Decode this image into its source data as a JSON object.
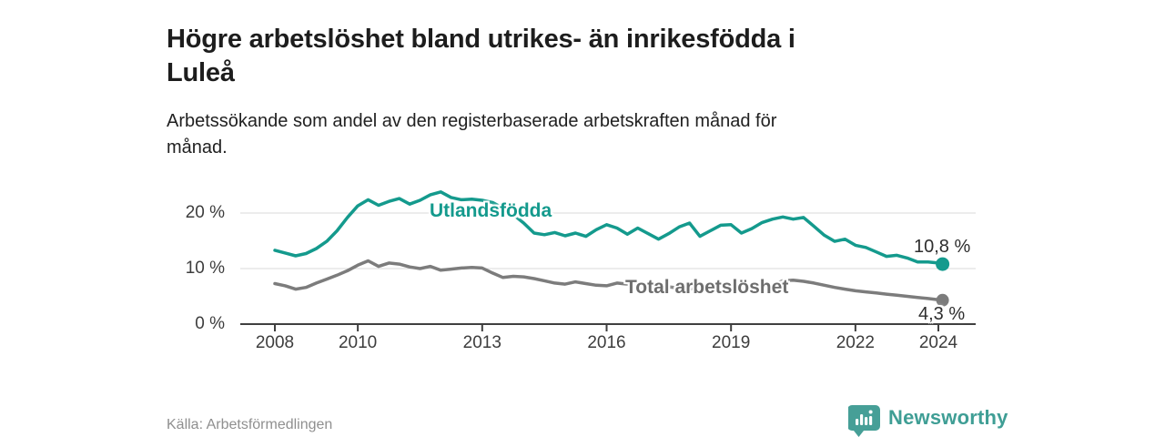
{
  "header": {
    "title": "Högre arbetslöshet bland utrikes- än inrikesfödda i Luleå",
    "title_lines": [
      "Högre arbetslöshet bland utrikes- än inrikesfödda i",
      "Luleå"
    ],
    "subtitle": "Arbetssökande som andel av den registerbaserade arbetskraften månad för månad.",
    "subtitle_lines": [
      "Arbetssökande som andel av den registerbaserade arbetskraften månad för",
      "månad."
    ]
  },
  "chart_data": {
    "type": "line",
    "title": "Högre arbetslöshet bland utrikes- än inrikesfödda i Luleå",
    "subtitle": "Arbetssökande som andel av den registerbaserade arbetskraften månad för månad.",
    "unit": "%",
    "grid": true,
    "legend_position": "inline-labels",
    "x_range": [
      2008,
      2024.17
    ],
    "y_range": [
      0,
      25.5
    ],
    "x_ticks": [
      {
        "year": 2008,
        "label": "2008"
      },
      {
        "year": 2010,
        "label": "2010"
      },
      {
        "year": 2013,
        "label": "2013"
      },
      {
        "year": 2016,
        "label": "2016"
      },
      {
        "year": 2019,
        "label": "2019"
      },
      {
        "year": 2022,
        "label": "2022"
      },
      {
        "year": 2024,
        "label": "2024"
      }
    ],
    "y_ticks": [
      {
        "value": 0,
        "label": "0 %"
      },
      {
        "value": 10,
        "label": "10 %"
      },
      {
        "value": 20,
        "label": "20 %"
      }
    ],
    "series": [
      {
        "name": "Utlandsfödda",
        "color": "#149a8d",
        "end_label": "10,8 %",
        "end_value": 10.8,
        "points": [
          [
            2008.0,
            13.3
          ],
          [
            2008.25,
            12.8
          ],
          [
            2008.5,
            12.3
          ],
          [
            2008.75,
            12.7
          ],
          [
            2009.0,
            13.6
          ],
          [
            2009.25,
            14.9
          ],
          [
            2009.5,
            16.8
          ],
          [
            2009.75,
            19.2
          ],
          [
            2010.0,
            21.3
          ],
          [
            2010.25,
            22.4
          ],
          [
            2010.5,
            21.4
          ],
          [
            2010.75,
            22.1
          ],
          [
            2011.0,
            22.6
          ],
          [
            2011.25,
            21.6
          ],
          [
            2011.5,
            22.3
          ],
          [
            2011.75,
            23.3
          ],
          [
            2012.0,
            23.8
          ],
          [
            2012.25,
            22.8
          ],
          [
            2012.5,
            22.4
          ],
          [
            2012.75,
            22.5
          ],
          [
            2013.0,
            22.3
          ],
          [
            2013.25,
            21.9
          ],
          [
            2013.5,
            20.9
          ],
          [
            2013.75,
            19.7
          ],
          [
            2014.0,
            18.2
          ],
          [
            2014.25,
            16.4
          ],
          [
            2014.5,
            16.1
          ],
          [
            2014.75,
            16.5
          ],
          [
            2015.0,
            15.9
          ],
          [
            2015.25,
            16.4
          ],
          [
            2015.5,
            15.8
          ],
          [
            2015.75,
            17.0
          ],
          [
            2016.0,
            17.9
          ],
          [
            2016.25,
            17.3
          ],
          [
            2016.5,
            16.2
          ],
          [
            2016.75,
            17.3
          ],
          [
            2017.0,
            16.3
          ],
          [
            2017.25,
            15.3
          ],
          [
            2017.5,
            16.3
          ],
          [
            2017.75,
            17.5
          ],
          [
            2018.0,
            18.2
          ],
          [
            2018.25,
            15.8
          ],
          [
            2018.5,
            16.8
          ],
          [
            2018.75,
            17.8
          ],
          [
            2019.0,
            17.9
          ],
          [
            2019.25,
            16.4
          ],
          [
            2019.5,
            17.2
          ],
          [
            2019.75,
            18.3
          ],
          [
            2020.0,
            18.9
          ],
          [
            2020.25,
            19.3
          ],
          [
            2020.5,
            18.9
          ],
          [
            2020.75,
            19.2
          ],
          [
            2021.0,
            17.6
          ],
          [
            2021.25,
            16.0
          ],
          [
            2021.5,
            14.9
          ],
          [
            2021.75,
            15.3
          ],
          [
            2022.0,
            14.2
          ],
          [
            2022.25,
            13.8
          ],
          [
            2022.5,
            13.0
          ],
          [
            2022.75,
            12.2
          ],
          [
            2023.0,
            12.4
          ],
          [
            2023.25,
            11.9
          ],
          [
            2023.5,
            11.2
          ],
          [
            2023.75,
            11.2
          ],
          [
            2024.0,
            11.0
          ],
          [
            2024.1,
            10.8
          ]
        ]
      },
      {
        "name": "Total arbetslöshet",
        "color": "#7c7c7c",
        "end_label": "4,3 %",
        "end_value": 4.3,
        "points": [
          [
            2008.0,
            7.3
          ],
          [
            2008.25,
            6.9
          ],
          [
            2008.5,
            6.3
          ],
          [
            2008.75,
            6.6
          ],
          [
            2009.0,
            7.4
          ],
          [
            2009.25,
            8.1
          ],
          [
            2009.5,
            8.8
          ],
          [
            2009.75,
            9.6
          ],
          [
            2010.0,
            10.6
          ],
          [
            2010.25,
            11.4
          ],
          [
            2010.5,
            10.4
          ],
          [
            2010.75,
            11.0
          ],
          [
            2011.0,
            10.8
          ],
          [
            2011.25,
            10.3
          ],
          [
            2011.5,
            10.0
          ],
          [
            2011.75,
            10.4
          ],
          [
            2012.0,
            9.7
          ],
          [
            2012.25,
            9.9
          ],
          [
            2012.5,
            10.1
          ],
          [
            2012.75,
            10.2
          ],
          [
            2013.0,
            10.1
          ],
          [
            2013.25,
            9.2
          ],
          [
            2013.5,
            8.4
          ],
          [
            2013.75,
            8.6
          ],
          [
            2014.0,
            8.5
          ],
          [
            2014.25,
            8.2
          ],
          [
            2014.5,
            7.8
          ],
          [
            2014.75,
            7.4
          ],
          [
            2015.0,
            7.2
          ],
          [
            2015.25,
            7.6
          ],
          [
            2015.5,
            7.3
          ],
          [
            2015.75,
            7.0
          ],
          [
            2016.0,
            6.9
          ],
          [
            2016.25,
            7.4
          ],
          [
            2016.5,
            7.2
          ],
          [
            2016.75,
            6.6
          ],
          [
            2017.0,
            6.2
          ],
          [
            2017.25,
            6.5
          ],
          [
            2017.5,
            6.7
          ],
          [
            2017.75,
            6.5
          ],
          [
            2018.0,
            6.4
          ],
          [
            2018.25,
            6.3
          ],
          [
            2018.5,
            6.5
          ],
          [
            2018.75,
            6.4
          ],
          [
            2019.0,
            6.3
          ],
          [
            2019.25,
            6.2
          ],
          [
            2019.5,
            6.5
          ],
          [
            2019.75,
            6.6
          ],
          [
            2020.0,
            7.0
          ],
          [
            2020.25,
            7.8
          ],
          [
            2020.5,
            7.9
          ],
          [
            2020.75,
            7.7
          ],
          [
            2021.0,
            7.4
          ],
          [
            2021.25,
            7.0
          ],
          [
            2021.5,
            6.6
          ],
          [
            2021.75,
            6.3
          ],
          [
            2022.0,
            6.0
          ],
          [
            2022.25,
            5.8
          ],
          [
            2022.5,
            5.6
          ],
          [
            2022.75,
            5.4
          ],
          [
            2023.0,
            5.2
          ],
          [
            2023.25,
            5.0
          ],
          [
            2023.5,
            4.8
          ],
          [
            2023.75,
            4.6
          ],
          [
            2024.0,
            4.4
          ],
          [
            2024.1,
            4.3
          ]
        ]
      }
    ]
  },
  "footer": {
    "source": "Källa: Arbetsförmedlingen",
    "brand": "Newsworthy"
  },
  "colors": {
    "accent_teal": "#149a8d",
    "line_gray": "#7c7c7c",
    "grid": "#d8d8d8",
    "axis": "#3f3f3f",
    "brand_teal": "#3f9e95"
  }
}
